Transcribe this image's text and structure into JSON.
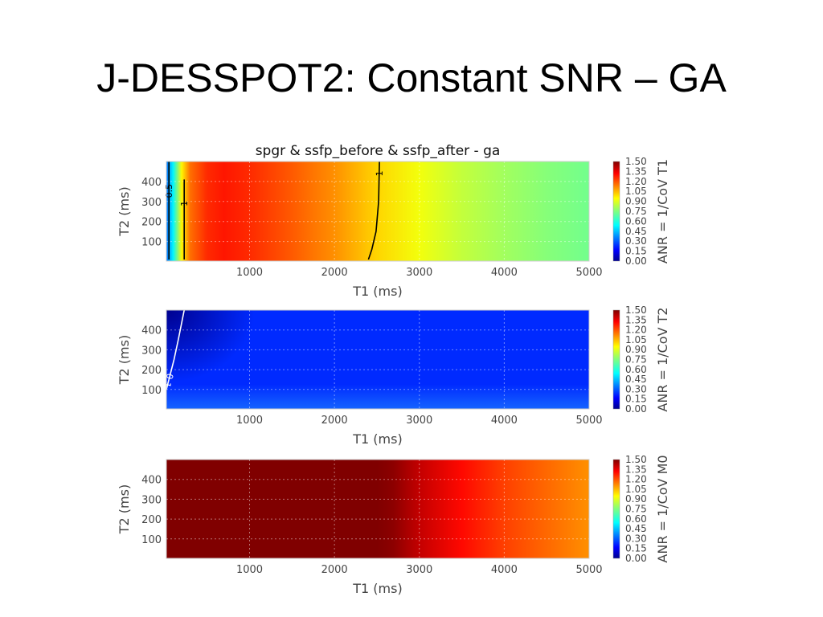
{
  "slide": {
    "title": "J-DESSPOT2: Constant SNR – GA"
  },
  "chart_data": [
    {
      "type": "heatmap",
      "title": "spgr & ssfp_before & ssfp_after - ga",
      "xlabel": "T1 (ms)",
      "ylabel": "T2 (ms)",
      "colorbar_label": "ANR = 1/CoV T1",
      "xlim": [
        20,
        5000
      ],
      "ylim": [
        2,
        500
      ],
      "xticks": [
        1000,
        2000,
        3000,
        4000,
        5000
      ],
      "yticks": [
        100,
        200,
        300,
        400
      ],
      "clim": [
        0.0,
        1.5
      ],
      "colorbar_ticks": [
        "0.00",
        "0.15",
        "0.30",
        "0.45",
        "0.60",
        "0.75",
        "0.90",
        "1.05",
        "1.20",
        "1.35",
        "1.50"
      ],
      "colormap": "jet",
      "grid": true,
      "value_profile_vs_T1": {
        "x": [
          20,
          100,
          200,
          300,
          500,
          700,
          1000,
          1500,
          2000,
          2500,
          3000,
          3500,
          4000,
          4500,
          5000
        ],
        "values": [
          0.35,
          0.55,
          0.95,
          1.15,
          1.25,
          1.28,
          1.25,
          1.18,
          1.1,
          1.0,
          0.92,
          0.85,
          0.8,
          0.76,
          0.73
        ]
      },
      "contours": [
        {
          "label": "0.5",
          "points": [
            [
              50,
              500
            ],
            [
              50,
              10
            ]
          ]
        },
        {
          "label": "1",
          "points": [
            [
              230,
              410
            ],
            [
              230,
              10
            ]
          ]
        },
        {
          "label": "1",
          "points": [
            [
              2530,
              500
            ],
            [
              2520,
              300
            ],
            [
              2490,
              150
            ],
            [
              2440,
              60
            ],
            [
              2400,
              10
            ]
          ]
        }
      ]
    },
    {
      "type": "heatmap",
      "title": "",
      "xlabel": "T1 (ms)",
      "ylabel": "T2 (ms)",
      "colorbar_label": "ANR = 1/CoV T2",
      "xlim": [
        20,
        5000
      ],
      "ylim": [
        2,
        500
      ],
      "xticks": [
        1000,
        2000,
        3000,
        4000,
        5000
      ],
      "yticks": [
        100,
        200,
        300,
        400
      ],
      "clim": [
        0.0,
        1.5
      ],
      "colorbar_ticks": [
        "0.00",
        "0.15",
        "0.30",
        "0.45",
        "0.60",
        "0.75",
        "0.90",
        "1.05",
        "1.20",
        "1.35",
        "1.50"
      ],
      "colormap": "jet",
      "grid": true,
      "value_field": {
        "background": 0.25,
        "dark_corner_near_low_T1_high_T2": 0.05,
        "near_low_T2": 0.3
      },
      "contours": [
        {
          "label": "0.1",
          "points": [
            [
              20,
              100
            ],
            [
              110,
              250
            ],
            [
              160,
              350
            ],
            [
              230,
              500
            ]
          ]
        }
      ]
    },
    {
      "type": "heatmap",
      "title": "",
      "xlabel": "T1 (ms)",
      "ylabel": "T2 (ms)",
      "colorbar_label": "ANR = 1/CoV M0",
      "xlim": [
        20,
        5000
      ],
      "ylim": [
        2,
        500
      ],
      "xticks": [
        1000,
        2000,
        3000,
        4000,
        5000
      ],
      "yticks": [
        100,
        200,
        300,
        400
      ],
      "clim": [
        0.0,
        1.5
      ],
      "colorbar_ticks": [
        "0.00",
        "0.15",
        "0.30",
        "0.45",
        "0.60",
        "0.75",
        "0.90",
        "1.05",
        "1.20",
        "1.35",
        "1.50"
      ],
      "colormap": "jet",
      "grid": true,
      "value_profile_vs_T1": {
        "x": [
          20,
          2500,
          2700,
          3000,
          3500,
          4000,
          4500,
          5000
        ],
        "values": [
          1.5,
          1.5,
          1.48,
          1.4,
          1.3,
          1.22,
          1.16,
          1.1
        ]
      },
      "contours": []
    }
  ]
}
